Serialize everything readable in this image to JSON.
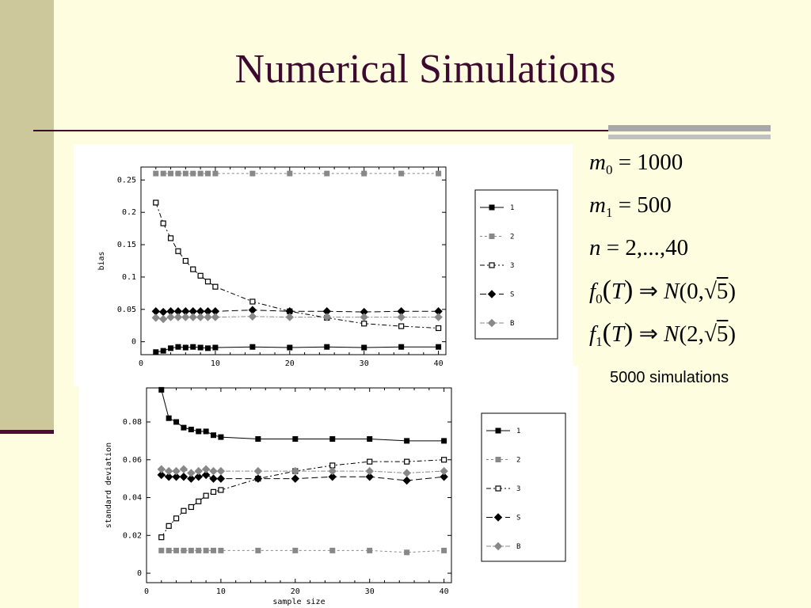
{
  "slide": {
    "title": "Numerical Simulations",
    "simulations_text": "5000 simulations",
    "colors": {
      "background": "#FFFDE0",
      "accent_bar": "#CCC89B",
      "title": "#3D0A2F",
      "rule_grey": "#A8A8A8"
    }
  },
  "equations": [
    {
      "sym": "m",
      "sub": "0",
      "rest": " = 1000"
    },
    {
      "sym": "m",
      "sub": "1",
      "rest": " = 500"
    },
    {
      "sym": "n",
      "sub": "",
      "rest": " = 2,...,40"
    },
    {
      "sym": "f",
      "sub": "0",
      "arg": "T",
      "arrow": "⇒",
      "dist": "N",
      "params": "(0,",
      "root": "5",
      "close": ")"
    },
    {
      "sym": "f",
      "sub": "1",
      "arg": "T",
      "arrow": "⇒",
      "dist": "N",
      "params": "(2,",
      "root": "5",
      "close": ")"
    }
  ],
  "chart_data": [
    {
      "type": "line",
      "title": "",
      "xlabel": "",
      "ylabel": "bias",
      "xlim": [
        0,
        41
      ],
      "ylim": [
        -0.02,
        0.27
      ],
      "xticks": [
        0,
        10,
        20,
        30,
        40
      ],
      "yticks": [
        0,
        0.05,
        0.1,
        0.15,
        0.2,
        0.25
      ],
      "ytick_labels": [
        "0",
        "0.05",
        "0.1",
        "0.15",
        "0.2",
        "0.25"
      ],
      "grid": false,
      "legend_position": "right",
      "x": [
        2,
        3,
        4,
        5,
        6,
        7,
        8,
        9,
        10,
        15,
        20,
        25,
        30,
        35,
        40
      ],
      "series": [
        {
          "name": "1",
          "marker": "square-filled",
          "dash": "",
          "color": "#000000",
          "values": [
            -0.016,
            -0.014,
            -0.01,
            -0.008,
            -0.009,
            -0.008,
            -0.009,
            -0.01,
            -0.009,
            -0.008,
            -0.009,
            -0.008,
            -0.009,
            -0.008,
            -0.008
          ]
        },
        {
          "name": "2",
          "marker": "square-filled",
          "dash": "3,3",
          "color": "#888888",
          "values": [
            0.26,
            0.26,
            0.26,
            0.26,
            0.26,
            0.26,
            0.26,
            0.26,
            0.26,
            0.26,
            0.26,
            0.26,
            0.26,
            0.26,
            0.26
          ]
        },
        {
          "name": "3",
          "marker": "square-open",
          "dash": "6,3,2,3",
          "color": "#000000",
          "values": [
            0.215,
            0.183,
            0.16,
            0.14,
            0.125,
            0.112,
            0.102,
            0.093,
            0.085,
            0.062,
            0.047,
            0.037,
            0.028,
            0.024,
            0.021
          ]
        },
        {
          "name": "S",
          "marker": "diamond-filled",
          "dash": "8,4",
          "color": "#000000",
          "values": [
            0.047,
            0.046,
            0.047,
            0.047,
            0.047,
            0.047,
            0.047,
            0.047,
            0.047,
            0.049,
            0.047,
            0.047,
            0.046,
            0.047,
            0.047
          ]
        },
        {
          "name": "B",
          "marker": "diamond-filled",
          "dash": "6,2,2,2",
          "color": "#888888",
          "values": [
            0.037,
            0.035,
            0.038,
            0.038,
            0.038,
            0.038,
            0.038,
            0.038,
            0.038,
            0.039,
            0.038,
            0.038,
            0.038,
            0.038,
            0.038
          ]
        }
      ]
    },
    {
      "type": "line",
      "title": "",
      "xlabel": "sample size",
      "ylabel": "standard deviation",
      "xlim": [
        0,
        41
      ],
      "ylim": [
        -0.005,
        0.098
      ],
      "xticks": [
        0,
        10,
        20,
        30,
        40
      ],
      "yticks": [
        0,
        0.02,
        0.04,
        0.06,
        0.08
      ],
      "ytick_labels": [
        "0",
        "0.02",
        "0.04",
        "0.06",
        "0.08"
      ],
      "grid": false,
      "legend_position": "right",
      "x": [
        2,
        3,
        4,
        5,
        6,
        7,
        8,
        9,
        10,
        15,
        20,
        25,
        30,
        35,
        40
      ],
      "series": [
        {
          "name": "1",
          "marker": "square-filled",
          "dash": "",
          "color": "#000000",
          "values": [
            0.097,
            0.082,
            0.08,
            0.077,
            0.076,
            0.075,
            0.075,
            0.073,
            0.072,
            0.071,
            0.071,
            0.071,
            0.071,
            0.07,
            0.07
          ]
        },
        {
          "name": "2",
          "marker": "square-filled",
          "dash": "3,3",
          "color": "#888888",
          "values": [
            0.012,
            0.012,
            0.012,
            0.012,
            0.012,
            0.012,
            0.012,
            0.012,
            0.012,
            0.012,
            0.012,
            0.012,
            0.012,
            0.011,
            0.012
          ]
        },
        {
          "name": "3",
          "marker": "square-open",
          "dash": "6,3,2,3",
          "color": "#000000",
          "values": [
            0.019,
            0.025,
            0.029,
            0.033,
            0.035,
            0.038,
            0.041,
            0.043,
            0.044,
            0.05,
            0.054,
            0.057,
            0.059,
            0.059,
            0.06
          ]
        },
        {
          "name": "S",
          "marker": "diamond-filled",
          "dash": "8,4",
          "color": "#000000",
          "values": [
            0.052,
            0.051,
            0.051,
            0.051,
            0.05,
            0.051,
            0.052,
            0.05,
            0.05,
            0.05,
            0.05,
            0.051,
            0.051,
            0.049,
            0.051
          ]
        },
        {
          "name": "B",
          "marker": "diamond-filled",
          "dash": "6,2,2,2",
          "color": "#888888",
          "values": [
            0.055,
            0.054,
            0.054,
            0.055,
            0.053,
            0.054,
            0.055,
            0.054,
            0.054,
            0.054,
            0.054,
            0.054,
            0.054,
            0.053,
            0.054
          ]
        }
      ]
    }
  ]
}
